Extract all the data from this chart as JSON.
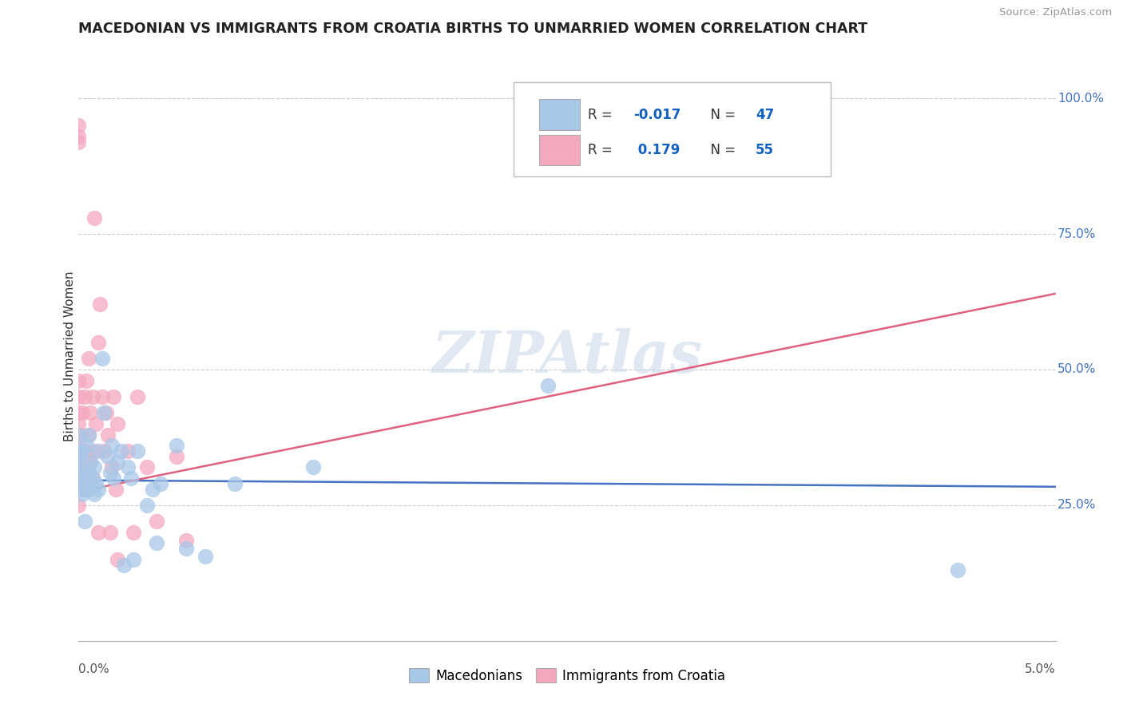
{
  "title": "MACEDONIAN VS IMMIGRANTS FROM CROATIA BIRTHS TO UNMARRIED WOMEN CORRELATION CHART",
  "source": "Source: ZipAtlas.com",
  "ylabel": "Births to Unmarried Women",
  "blue_color": "#A8C8E8",
  "pink_color": "#F4A8BE",
  "blue_trend_color": "#4472C4",
  "pink_trend_color": "#E06080",
  "watermark": "ZIPAtlas",
  "blue_r": "-0.017",
  "blue_n": "47",
  "pink_r": "0.179",
  "pink_n": "55",
  "blue_points": [
    [
      0.0,
      0.335
    ],
    [
      0.0,
      0.31
    ],
    [
      0.0,
      0.29
    ],
    [
      0.0,
      0.35
    ],
    [
      0.0,
      0.32
    ],
    [
      0.0,
      0.38
    ],
    [
      0.0,
      0.28
    ],
    [
      0.02,
      0.27
    ],
    [
      0.02,
      0.35
    ],
    [
      0.03,
      0.28
    ],
    [
      0.03,
      0.22
    ],
    [
      0.04,
      0.3
    ],
    [
      0.04,
      0.36
    ],
    [
      0.05,
      0.31
    ],
    [
      0.05,
      0.38
    ],
    [
      0.06,
      0.28
    ],
    [
      0.06,
      0.33
    ],
    [
      0.07,
      0.3
    ],
    [
      0.08,
      0.27
    ],
    [
      0.08,
      0.32
    ],
    [
      0.09,
      0.29
    ],
    [
      0.1,
      0.35
    ],
    [
      0.1,
      0.28
    ],
    [
      0.12,
      0.52
    ],
    [
      0.13,
      0.42
    ],
    [
      0.15,
      0.34
    ],
    [
      0.16,
      0.31
    ],
    [
      0.17,
      0.36
    ],
    [
      0.18,
      0.3
    ],
    [
      0.2,
      0.33
    ],
    [
      0.22,
      0.35
    ],
    [
      0.23,
      0.14
    ],
    [
      0.25,
      0.32
    ],
    [
      0.27,
      0.3
    ],
    [
      0.28,
      0.15
    ],
    [
      0.3,
      0.35
    ],
    [
      0.35,
      0.25
    ],
    [
      0.38,
      0.28
    ],
    [
      0.4,
      0.18
    ],
    [
      0.42,
      0.29
    ],
    [
      0.5,
      0.36
    ],
    [
      0.55,
      0.17
    ],
    [
      0.65,
      0.155
    ],
    [
      0.8,
      0.29
    ],
    [
      1.2,
      0.32
    ],
    [
      2.4,
      0.47
    ],
    [
      4.5,
      0.13
    ]
  ],
  "pink_points": [
    [
      0.0,
      0.95
    ],
    [
      0.0,
      0.93
    ],
    [
      0.0,
      0.92
    ],
    [
      0.0,
      0.35
    ],
    [
      0.0,
      0.36
    ],
    [
      0.0,
      0.38
    ],
    [
      0.0,
      0.4
    ],
    [
      0.0,
      0.3
    ],
    [
      0.0,
      0.32
    ],
    [
      0.0,
      0.28
    ],
    [
      0.0,
      0.25
    ],
    [
      0.0,
      0.33
    ],
    [
      0.0,
      0.45
    ],
    [
      0.0,
      0.42
    ],
    [
      0.0,
      0.48
    ],
    [
      0.01,
      0.38
    ],
    [
      0.01,
      0.33
    ],
    [
      0.01,
      0.28
    ],
    [
      0.02,
      0.42
    ],
    [
      0.02,
      0.35
    ],
    [
      0.02,
      0.3
    ],
    [
      0.03,
      0.45
    ],
    [
      0.03,
      0.32
    ],
    [
      0.03,
      0.28
    ],
    [
      0.04,
      0.48
    ],
    [
      0.04,
      0.35
    ],
    [
      0.05,
      0.52
    ],
    [
      0.05,
      0.38
    ],
    [
      0.06,
      0.42
    ],
    [
      0.06,
      0.33
    ],
    [
      0.07,
      0.45
    ],
    [
      0.07,
      0.3
    ],
    [
      0.08,
      0.78
    ],
    [
      0.08,
      0.35
    ],
    [
      0.09,
      0.4
    ],
    [
      0.1,
      0.55
    ],
    [
      0.1,
      0.2
    ],
    [
      0.11,
      0.62
    ],
    [
      0.12,
      0.45
    ],
    [
      0.13,
      0.35
    ],
    [
      0.14,
      0.42
    ],
    [
      0.15,
      0.38
    ],
    [
      0.16,
      0.2
    ],
    [
      0.17,
      0.32
    ],
    [
      0.18,
      0.45
    ],
    [
      0.19,
      0.28
    ],
    [
      0.2,
      0.15
    ],
    [
      0.2,
      0.4
    ],
    [
      0.25,
      0.35
    ],
    [
      0.28,
      0.2
    ],
    [
      0.3,
      0.45
    ],
    [
      0.35,
      0.32
    ],
    [
      0.4,
      0.22
    ],
    [
      0.5,
      0.34
    ],
    [
      0.55,
      0.185
    ]
  ],
  "blue_trend": [
    0.0,
    5.0,
    0.296,
    0.284
  ],
  "pink_trend": [
    0.0,
    5.0,
    0.275,
    0.64
  ],
  "xlim": [
    0,
    5.0
  ],
  "ylim": [
    0,
    1.05
  ],
  "y_ticks": [
    0.25,
    0.5,
    0.75,
    1.0
  ],
  "y_tick_labels": [
    "25.0%",
    "50.0%",
    "75.0%",
    "100.0%"
  ]
}
